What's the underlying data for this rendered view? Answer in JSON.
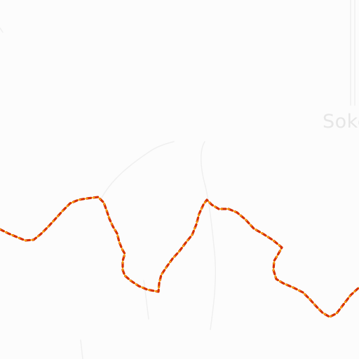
{
  "map": {
    "place_label": "Soko",
    "colors": {
      "background": "#fcfcfc",
      "road": "#efefef",
      "route_outer": "#d63000",
      "route_inner": "#ffb400",
      "label": "#e6e6e6"
    }
  }
}
